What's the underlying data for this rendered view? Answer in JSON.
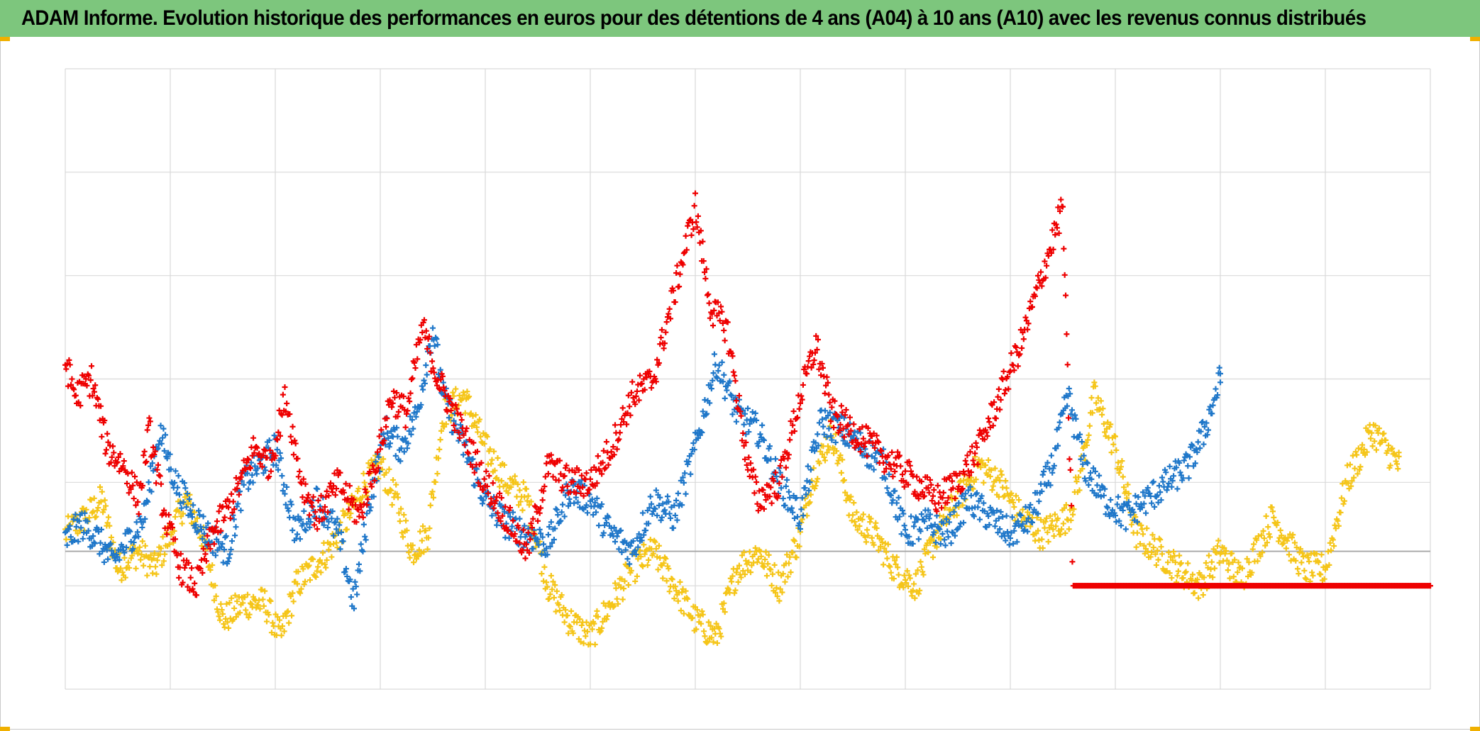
{
  "header": {
    "title": "ADAM Informe. Evolution historique des performances en euros pour des détentions de 4 ans (A04) à 10 ans (A10) avec les revenus connus distribués"
  },
  "colors": {
    "title_bg": "#7dc67d",
    "corner_accent": "#f0b000",
    "grid": "#d9d9d9",
    "zero_line": "#a6a6a6"
  },
  "chart_data": {
    "type": "scatter",
    "marker": "plus",
    "title": "ADAM Informe. Evolution historique des performances en euros pour des détentions de 4 ans (A04) à 10 ans (A10) avec les revenus connus distribués",
    "xlabel": "",
    "ylabel": "",
    "xlim": [
      0,
      13
    ],
    "ylim": [
      -40,
      140
    ],
    "grid": true,
    "legend": "none",
    "series": [
      {
        "name": "red",
        "color": "#ee0000",
        "x": [
          0.0,
          0.1,
          0.25,
          0.4,
          0.55,
          0.7,
          0.8,
          0.95,
          1.1,
          1.25,
          1.4,
          1.6,
          1.8,
          1.95,
          2.1,
          2.25,
          2.4,
          2.6,
          2.8,
          3.0,
          3.1,
          3.25,
          3.4,
          3.55,
          3.7,
          3.85,
          4.0,
          4.2,
          4.4,
          4.6,
          4.8,
          5.0,
          5.2,
          5.4,
          5.6,
          5.8,
          6.0,
          6.15,
          6.3,
          6.5,
          6.6,
          6.8,
          7.0,
          7.15,
          7.3,
          7.5,
          7.7,
          7.9,
          8.1,
          8.3,
          8.5,
          8.7,
          8.9,
          9.1,
          9.3,
          9.5,
          9.6,
          9.7,
          9.8,
          10.0,
          10.5,
          11.0,
          11.5,
          12.0,
          12.5,
          13.0
        ],
        "y": [
          55,
          45,
          50,
          30,
          25,
          15,
          35,
          10,
          -5,
          -10,
          5,
          15,
          30,
          25,
          45,
          20,
          10,
          20,
          10,
          30,
          45,
          40,
          65,
          50,
          40,
          30,
          20,
          10,
          0,
          25,
          20,
          20,
          30,
          45,
          50,
          75,
          100,
          70,
          65,
          25,
          15,
          20,
          45,
          60,
          40,
          35,
          30,
          25,
          20,
          15,
          20,
          30,
          45,
          60,
          80,
          100,
          -10,
          -10,
          -10,
          -10,
          -10,
          -10,
          -10,
          -10,
          -10,
          -10
        ]
      },
      {
        "name": "blue",
        "color": "#1f77c9",
        "x": [
          0.0,
          0.15,
          0.3,
          0.45,
          0.6,
          0.75,
          0.9,
          1.05,
          1.2,
          1.35,
          1.55,
          1.7,
          1.85,
          2.0,
          2.2,
          2.4,
          2.6,
          2.75,
          2.9,
          3.05,
          3.2,
          3.35,
          3.5,
          3.6,
          3.8,
          4.0,
          4.2,
          4.4,
          4.6,
          4.8,
          5.0,
          5.2,
          5.4,
          5.6,
          5.8,
          6.0,
          6.2,
          6.4,
          6.6,
          6.8,
          7.0,
          7.2,
          7.4,
          7.6,
          7.8,
          8.0,
          8.2,
          8.4,
          8.6,
          8.8,
          9.0,
          9.2,
          9.4,
          9.55,
          9.7,
          9.9,
          10.1,
          10.3,
          10.5,
          10.7,
          10.85,
          11.0
        ],
        "y": [
          3,
          8,
          4,
          -3,
          3,
          10,
          35,
          20,
          12,
          5,
          0,
          20,
          25,
          30,
          5,
          15,
          5,
          -15,
          15,
          35,
          30,
          40,
          65,
          45,
          30,
          15,
          8,
          5,
          2,
          18,
          15,
          5,
          0,
          15,
          10,
          30,
          55,
          40,
          35,
          20,
          10,
          38,
          35,
          30,
          25,
          5,
          8,
          5,
          15,
          10,
          5,
          10,
          25,
          45,
          25,
          15,
          10,
          15,
          20,
          25,
          35,
          50
        ]
      },
      {
        "name": "yellow",
        "color": "#f5c518",
        "x": [
          0.0,
          0.2,
          0.35,
          0.5,
          0.7,
          0.85,
          1.0,
          1.15,
          1.3,
          1.5,
          1.7,
          1.9,
          2.05,
          2.2,
          2.35,
          2.5,
          2.7,
          2.85,
          3.0,
          3.15,
          3.3,
          3.45,
          3.6,
          3.8,
          4.0,
          4.2,
          4.4,
          4.6,
          4.8,
          5.0,
          5.2,
          5.4,
          5.6,
          5.8,
          6.0,
          6.2,
          6.4,
          6.6,
          6.8,
          7.0,
          7.1,
          7.3,
          7.5,
          7.7,
          7.9,
          8.1,
          8.3,
          8.5,
          8.7,
          8.9,
          9.1,
          9.3,
          9.55,
          9.65,
          9.8,
          10.0,
          10.2,
          10.4,
          10.6,
          10.8,
          11.0,
          11.2,
          11.5,
          11.8,
          12.0,
          12.2,
          12.45,
          12.7
        ],
        "y": [
          5,
          10,
          15,
          -5,
          0,
          -5,
          5,
          15,
          5,
          -20,
          -15,
          -15,
          -25,
          -10,
          -5,
          0,
          10,
          20,
          25,
          15,
          0,
          5,
          40,
          45,
          30,
          20,
          15,
          -10,
          -20,
          -25,
          -15,
          -5,
          0,
          -10,
          -20,
          -25,
          -5,
          0,
          -10,
          5,
          20,
          35,
          10,
          5,
          -5,
          -10,
          5,
          15,
          25,
          20,
          10,
          5,
          10,
          20,
          45,
          30,
          5,
          0,
          -5,
          -10,
          0,
          -8,
          10,
          -5,
          -5,
          20,
          35,
          25
        ]
      }
    ]
  }
}
